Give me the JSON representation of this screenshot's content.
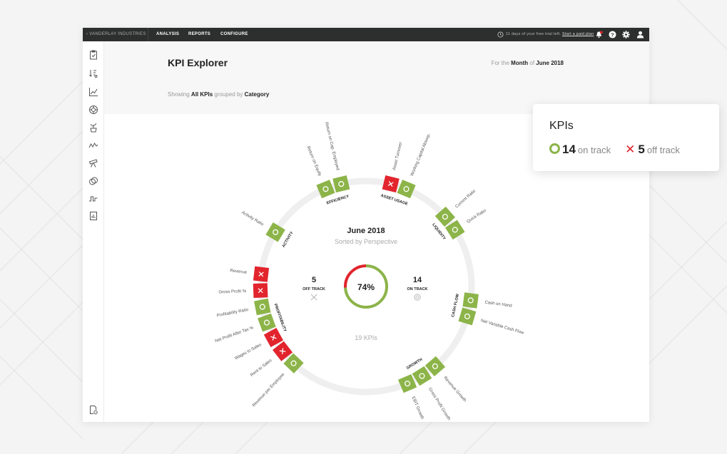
{
  "topbar": {
    "company": "‹  VANDERLAY INDUSTRIES",
    "nav": [
      "ANALYSIS",
      "REPORTS",
      "CONFIGURE"
    ],
    "trial_text": "11 days of your free trial left.",
    "trial_link": "Start a paid plan"
  },
  "header": {
    "title": "KPI Explorer",
    "period_prefix": "For the",
    "period_unit": "Month",
    "period_of": "of",
    "period_value": "June 2018",
    "showing_prefix": "Showing",
    "showing_value": "All KPIs",
    "grouped_by": "grouped by",
    "group_value": "Category"
  },
  "center": {
    "title": "June 2018",
    "subtitle": "Sorted by Perspective",
    "percent": 74,
    "percent_label": "74%",
    "off_count": "5",
    "off_label": "OFF TRACK",
    "on_count": "14",
    "on_label": "ON TRACK",
    "total": "19 KPIs"
  },
  "categories": [
    {
      "name": "EFFICIENCY",
      "kpis": [
        {
          "label": "Return on Equity",
          "status": "on"
        },
        {
          "label": "Return on Cap. Employed",
          "status": "on"
        }
      ]
    },
    {
      "name": "ASSET USAGE",
      "kpis": [
        {
          "label": "Asset Turnover",
          "status": "off"
        },
        {
          "label": "Working Capital Absorp.",
          "status": "on"
        }
      ]
    },
    {
      "name": "LIQUIDITY",
      "kpis": [
        {
          "label": "Current Ratio",
          "status": "on"
        },
        {
          "label": "Quick Ratio",
          "status": "on"
        }
      ]
    },
    {
      "name": "CASH FLOW",
      "kpis": [
        {
          "label": "Cash on Hand",
          "status": "on"
        },
        {
          "label": "Net Variable Cash Flow",
          "status": "on"
        }
      ]
    },
    {
      "name": "GROWTH",
      "kpis": [
        {
          "label": "Revenue Growth",
          "status": "on"
        },
        {
          "label": "Gross Profit Growth",
          "status": "on"
        },
        {
          "label": "EBIT Growth",
          "status": "on"
        }
      ]
    },
    {
      "name": "PROFITABILITY",
      "kpis": [
        {
          "label": "Revenue per Employee",
          "status": "on"
        },
        {
          "label": "Rent to Sales",
          "status": "off"
        },
        {
          "label": "Wages to Sales",
          "status": "off"
        },
        {
          "label": "Net Profit After Tax %",
          "status": "on"
        },
        {
          "label": "Profitability Ratio",
          "status": "on"
        },
        {
          "label": "Gross Profit %",
          "status": "off"
        },
        {
          "label": "Revenue",
          "status": "off"
        }
      ]
    },
    {
      "name": "ACTIVITY",
      "kpis": [
        {
          "label": "Activity Ratio",
          "status": "on"
        }
      ]
    }
  ],
  "popup": {
    "title": "KPIs",
    "on_count": "14",
    "on_label": "on track",
    "off_count": "5",
    "off_label": "off track"
  },
  "colors": {
    "on": "#8cb449",
    "off": "#e2242d",
    "ring": "#eeeeee"
  },
  "icons": {
    "sidebar": [
      "clipboard-icon",
      "sort-icon",
      "line-chart-icon",
      "dashboard-icon",
      "plant-icon",
      "trend-icon",
      "telescope-icon",
      "overlap-icon",
      "pulse-icon",
      "report-icon"
    ],
    "sidebar_bottom": "settings-doc-icon",
    "topbar": [
      "clock-icon",
      "notification-icon",
      "help-icon",
      "gear-icon",
      "user-icon"
    ]
  }
}
